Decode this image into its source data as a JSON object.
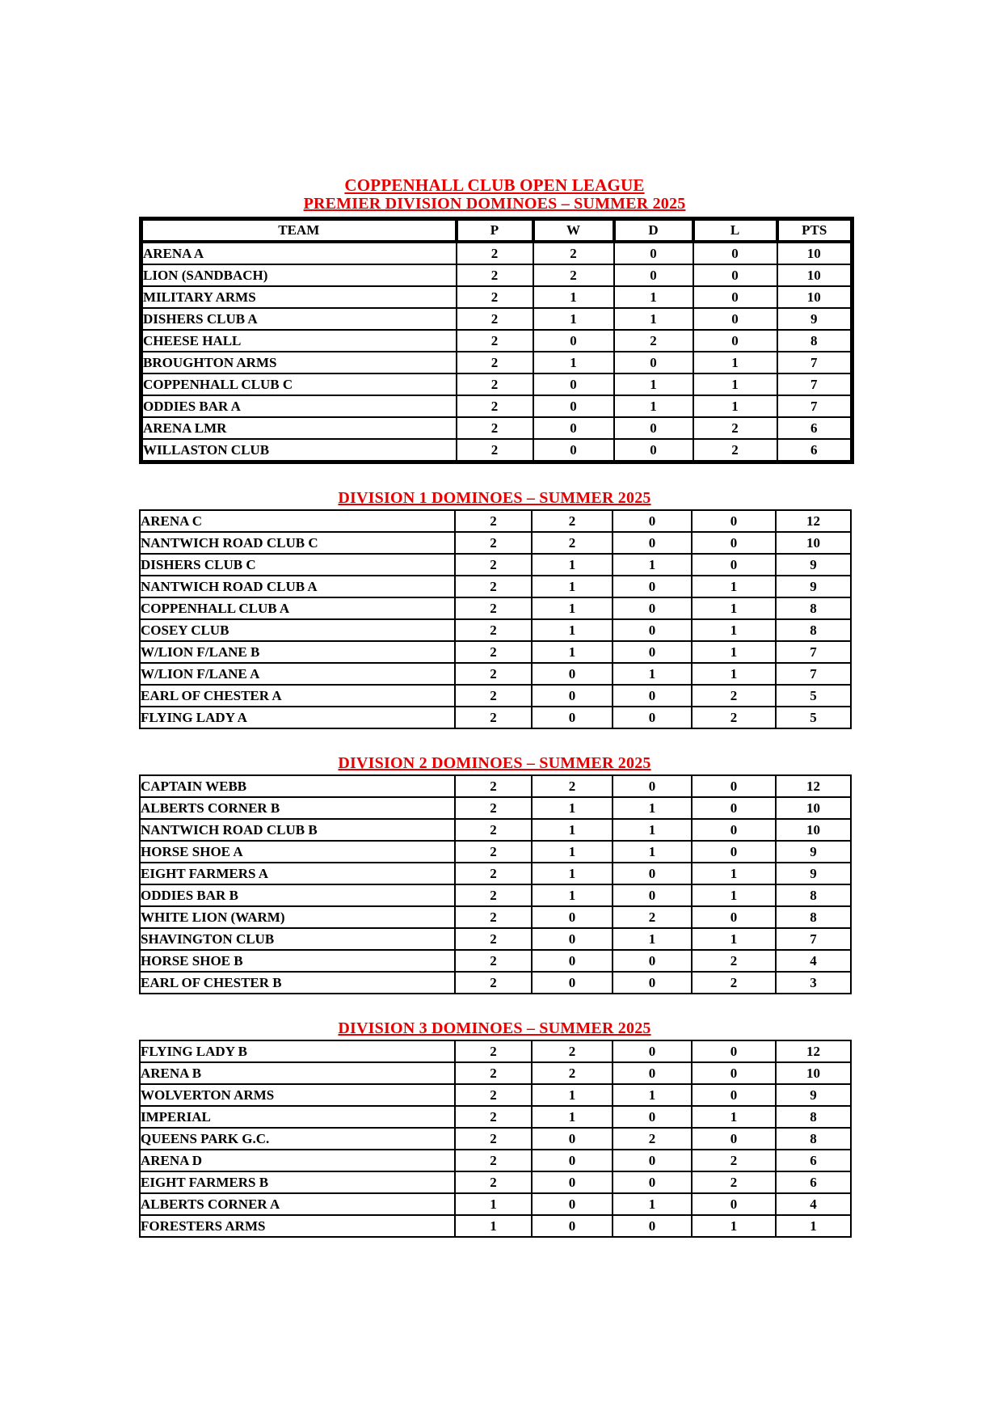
{
  "document": {
    "title": "COPPENHALL CLUB OPEN LEAGUE",
    "subtitle": "PREMIER DIVISION DOMINOES – SUMMER 2025",
    "accent_color": "#e60000",
    "text_color": "#000000",
    "background_color": "#ffffff"
  },
  "columns": [
    "TEAM",
    "P",
    "W",
    "D",
    "L",
    "PTS"
  ],
  "tables": [
    {
      "name": "premier-division",
      "heading": "",
      "show_header": true,
      "rows": [
        [
          "ARENA A",
          "2",
          "2",
          "0",
          "0",
          "10"
        ],
        [
          "LION (SANDBACH)",
          "2",
          "2",
          "0",
          "0",
          "10"
        ],
        [
          "MILITARY ARMS",
          "2",
          "1",
          "1",
          "0",
          "10"
        ],
        [
          "DISHERS CLUB A",
          "2",
          "1",
          "1",
          "0",
          "9"
        ],
        [
          "CHEESE HALL",
          "2",
          "0",
          "2",
          "0",
          "8"
        ],
        [
          "BROUGHTON ARMS",
          "2",
          "1",
          "0",
          "1",
          "7"
        ],
        [
          "COPPENHALL CLUB C",
          "2",
          "0",
          "1",
          "1",
          "7"
        ],
        [
          "ODDIES BAR A",
          "2",
          "0",
          "1",
          "1",
          "7"
        ],
        [
          "ARENA LMR",
          "2",
          "0",
          "0",
          "2",
          "6"
        ],
        [
          "WILLASTON CLUB",
          "2",
          "0",
          "0",
          "2",
          "6"
        ]
      ]
    },
    {
      "name": "division-1",
      "heading": "DIVISION 1 DOMINOES – SUMMER 2025",
      "show_header": false,
      "rows": [
        [
          "ARENA C",
          "2",
          "2",
          "0",
          "0",
          "12"
        ],
        [
          "NANTWICH ROAD CLUB C",
          "2",
          "2",
          "0",
          "0",
          "10"
        ],
        [
          "DISHERS CLUB C",
          "2",
          "1",
          "1",
          "0",
          "9"
        ],
        [
          "NANTWICH ROAD CLUB A",
          "2",
          "1",
          "0",
          "1",
          "9"
        ],
        [
          "COPPENHALL CLUB A",
          "2",
          "1",
          "0",
          "1",
          "8"
        ],
        [
          "COSEY CLUB",
          "2",
          "1",
          "0",
          "1",
          "8"
        ],
        [
          "W/LION F/LANE B",
          "2",
          "1",
          "0",
          "1",
          "7"
        ],
        [
          "W/LION F/LANE A",
          "2",
          "0",
          "1",
          "1",
          "7"
        ],
        [
          "EARL OF CHESTER A",
          "2",
          "0",
          "0",
          "2",
          "5"
        ],
        [
          "FLYING LADY A",
          "2",
          "0",
          "0",
          "2",
          "5"
        ]
      ]
    },
    {
      "name": "division-2",
      "heading": "DIVISION 2 DOMINOES – SUMMER 2025",
      "show_header": false,
      "rows": [
        [
          "CAPTAIN WEBB",
          "2",
          "2",
          "0",
          "0",
          "12"
        ],
        [
          "ALBERTS CORNER B",
          "2",
          "1",
          "1",
          "0",
          "10"
        ],
        [
          "NANTWICH ROAD CLUB B",
          "2",
          "1",
          "1",
          "0",
          "10"
        ],
        [
          "HORSE SHOE A",
          "2",
          "1",
          "1",
          "0",
          "9"
        ],
        [
          "EIGHT FARMERS A",
          "2",
          "1",
          "0",
          "1",
          "9"
        ],
        [
          "ODDIES BAR B",
          "2",
          "1",
          "0",
          "1",
          "8"
        ],
        [
          "WHITE LION (WARM)",
          "2",
          "0",
          "2",
          "0",
          "8"
        ],
        [
          "SHAVINGTON CLUB",
          "2",
          "0",
          "1",
          "1",
          "7"
        ],
        [
          "HORSE SHOE B",
          "2",
          "0",
          "0",
          "2",
          "4"
        ],
        [
          "EARL OF CHESTER B",
          "2",
          "0",
          "0",
          "2",
          "3"
        ]
      ]
    },
    {
      "name": "division-3",
      "heading": "DIVISION 3 DOMINOES – SUMMER 2025",
      "show_header": false,
      "rows": [
        [
          "FLYING LADY B",
          "2",
          "2",
          "0",
          "0",
          "12"
        ],
        [
          "ARENA B",
          "2",
          "2",
          "0",
          "0",
          "10"
        ],
        [
          "WOLVERTON ARMS",
          "2",
          "1",
          "1",
          "0",
          "9"
        ],
        [
          "IMPERIAL",
          "2",
          "1",
          "0",
          "1",
          "8"
        ],
        [
          "QUEENS PARK G.C.",
          "2",
          "0",
          "2",
          "0",
          "8"
        ],
        [
          "ARENA D",
          "2",
          "0",
          "0",
          "2",
          "6"
        ],
        [
          "EIGHT FARMERS B",
          "2",
          "0",
          "0",
          "2",
          "6"
        ],
        [
          "ALBERTS CORNER A",
          "1",
          "0",
          "1",
          "0",
          "4"
        ],
        [
          "FORESTERS ARMS",
          "1",
          "0",
          "0",
          "1",
          "1"
        ]
      ]
    }
  ]
}
